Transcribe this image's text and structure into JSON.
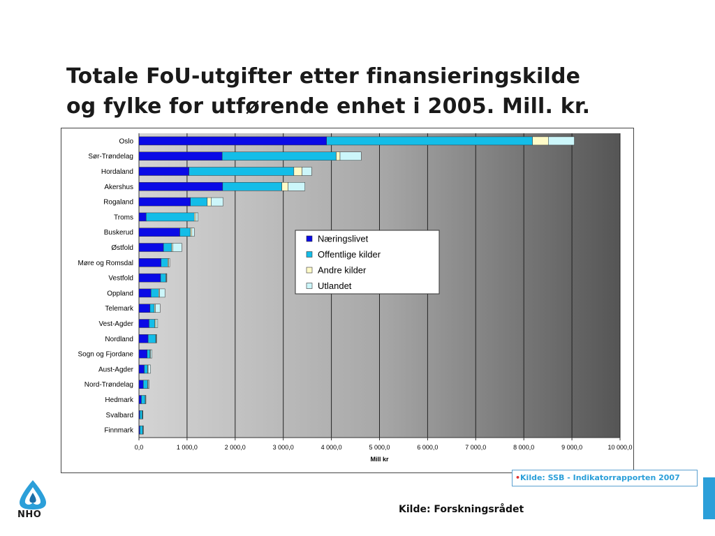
{
  "title_line1": "Totale FoU-utgifter etter finansieringskilde",
  "title_line2": "og fylke for utførende enhet i 2005. Mill. kr.",
  "source_box": {
    "bullet": "•",
    "text": "Kilde: SSB - Indikatorrapporten 2007"
  },
  "footer_source": "Kilde: Forskningsrådet",
  "logo_text": "NHO",
  "colors": {
    "naeringslivet": "#0a0ae6",
    "offentlige": "#14bde8",
    "andre": "#fffbc8",
    "utlandet": "#ccf6fa"
  },
  "chart_data": {
    "type": "bar",
    "orientation": "horizontal",
    "stacked": true,
    "categories": [
      "Oslo",
      "Sør-Trøndelag",
      "Hordaland",
      "Akershus",
      "Rogaland",
      "Troms",
      "Buskerud",
      "Østfold",
      "Møre og Romsdal",
      "Vestfold",
      "Oppland",
      "Telemark",
      "Vest-Agder",
      "Nordland",
      "Sogn og Fjordane",
      "Aust-Agder",
      "Nord-Trøndelag",
      "Hedmark",
      "Svalbard",
      "Finnmark"
    ],
    "series": [
      {
        "name": "Næringslivet",
        "values": [
          3900,
          1730,
          1040,
          1740,
          1070,
          150,
          850,
          510,
          460,
          450,
          250,
          230,
          210,
          190,
          170,
          110,
          90,
          50,
          20,
          20
        ]
      },
      {
        "name": "Offentlige kilder",
        "values": [
          4280,
          2370,
          2180,
          1230,
          350,
          1000,
          220,
          170,
          140,
          110,
          160,
          90,
          120,
          160,
          60,
          70,
          90,
          80,
          50,
          60
        ]
      },
      {
        "name": "Andre kilder",
        "values": [
          330,
          80,
          170,
          130,
          80,
          30,
          30,
          20,
          20,
          10,
          20,
          20,
          20,
          10,
          10,
          10,
          10,
          5,
          5,
          5
        ]
      },
      {
        "name": "Utlandet",
        "values": [
          540,
          440,
          200,
          350,
          250,
          50,
          50,
          190,
          20,
          10,
          110,
          100,
          40,
          10,
          30,
          50,
          20,
          10,
          5,
          5
        ]
      }
    ],
    "xlim": [
      0,
      10000
    ],
    "x_ticks": [
      0,
      1000,
      2000,
      3000,
      4000,
      5000,
      6000,
      7000,
      8000,
      9000,
      10000
    ],
    "x_tick_labels": [
      "0,0",
      "1 000,0",
      "2 000,0",
      "3 000,0",
      "4 000,0",
      "5 000,0",
      "6 000,0",
      "7 000,0",
      "8 000,0",
      "9 000,0",
      "10 000,0"
    ],
    "xlabel": "Mill kr",
    "ylabel": "",
    "grid": true,
    "legend": {
      "placement": "center"
    }
  }
}
